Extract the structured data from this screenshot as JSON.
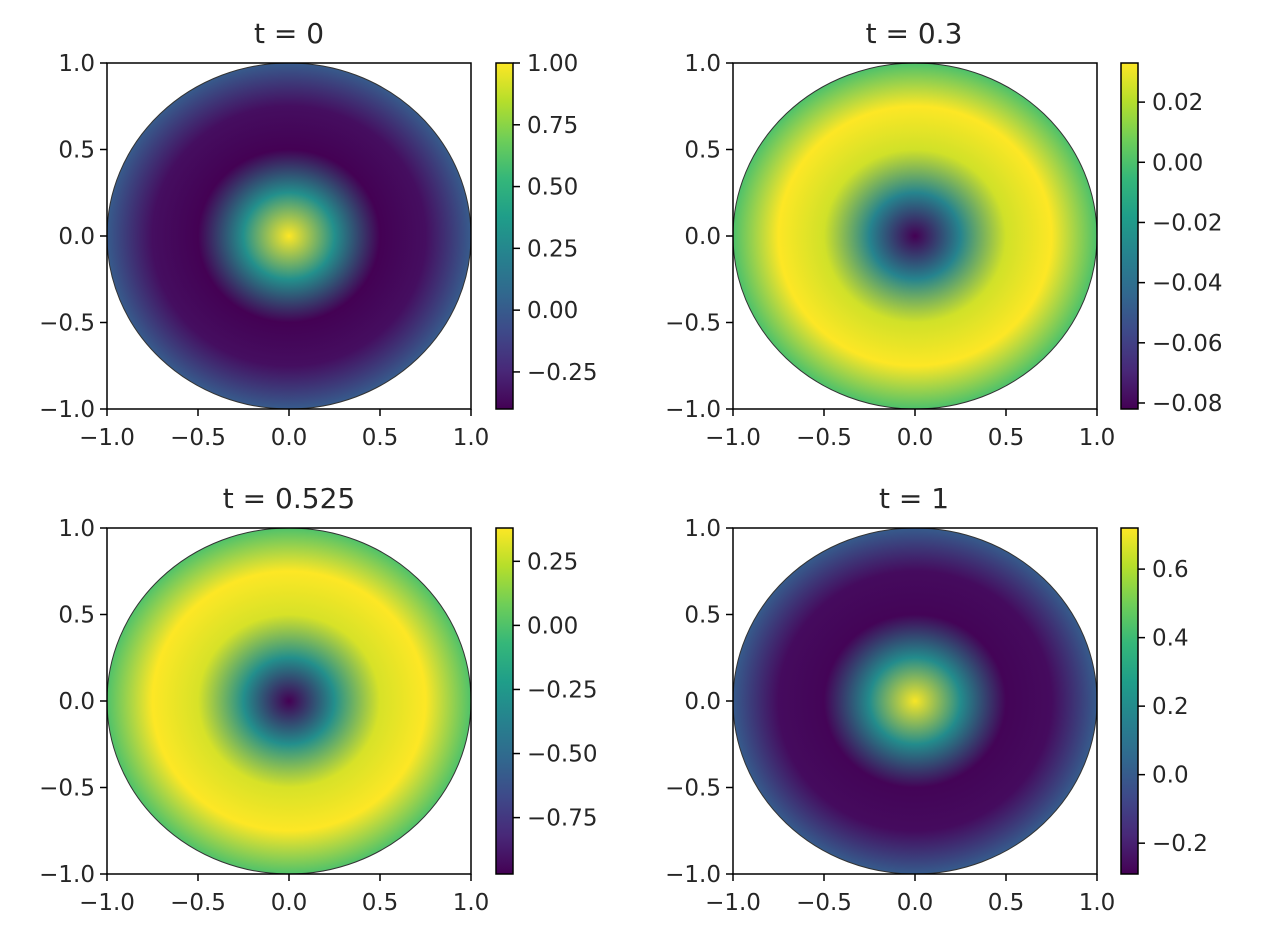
{
  "colormap": "viridis",
  "colors": {
    "viridis": [
      "#440154",
      "#482878",
      "#3e4989",
      "#31688e",
      "#26828e",
      "#1f9e89",
      "#35b779",
      "#6ece58",
      "#b5de2b",
      "#fde725"
    ],
    "axis": "#000000",
    "text": "#262626",
    "background": "#ffffff"
  },
  "chart_data": [
    {
      "type": "heatmap",
      "title": "t = 0",
      "xlabel": "",
      "ylabel": "",
      "xlim": [
        -1.0,
        1.0
      ],
      "ylim": [
        -1.0,
        1.0
      ],
      "xticks": [
        "−1.0",
        "−0.5",
        "0.0",
        "0.5",
        "1.0"
      ],
      "yticks": [
        "−1.0",
        "−0.5",
        "0.0",
        "0.5",
        "1.0"
      ],
      "domain": "unit disk",
      "radial_profile": {
        "r": [
          0.0,
          0.25,
          0.5,
          0.75,
          1.0
        ],
        "value": [
          1.0,
          0.3,
          -0.4,
          -0.35,
          0.0
        ]
      },
      "colorbar": {
        "min": -0.4,
        "max": 1.0,
        "ticks": [
          "−0.25",
          "0.00",
          "0.25",
          "0.50",
          "0.75",
          "1.00"
        ]
      }
    },
    {
      "type": "heatmap",
      "title": "t = 0.3",
      "xlabel": "",
      "ylabel": "",
      "xlim": [
        -1.0,
        1.0
      ],
      "ylim": [
        -1.0,
        1.0
      ],
      "xticks": [
        "−1.0",
        "−0.5",
        "0.0",
        "0.5",
        "1.0"
      ],
      "yticks": [
        "−1.0",
        "−0.5",
        "0.0",
        "0.5",
        "1.0"
      ],
      "domain": "unit disk",
      "radial_profile": {
        "r": [
          0.0,
          0.25,
          0.5,
          0.75,
          1.0
        ],
        "value": [
          -0.082,
          -0.03,
          0.025,
          0.033,
          0.0
        ]
      },
      "colorbar": {
        "min": -0.082,
        "max": 0.033,
        "ticks": [
          "−0.08",
          "−0.06",
          "−0.04",
          "−0.02",
          "0.00",
          "0.02"
        ]
      }
    },
    {
      "type": "heatmap",
      "title": "t = 0.525",
      "xlabel": "",
      "ylabel": "",
      "xlim": [
        -1.0,
        1.0
      ],
      "ylim": [
        -1.0,
        1.0
      ],
      "xticks": [
        "−1.0",
        "−0.5",
        "0.0",
        "0.5",
        "1.0"
      ],
      "yticks": [
        "−1.0",
        "−0.5",
        "0.0",
        "0.5",
        "1.0"
      ],
      "domain": "unit disk",
      "radial_profile": {
        "r": [
          0.0,
          0.25,
          0.5,
          0.75,
          1.0
        ],
        "value": [
          -0.97,
          -0.3,
          0.3,
          0.38,
          0.0
        ]
      },
      "colorbar": {
        "min": -0.97,
        "max": 0.38,
        "ticks": [
          "−0.75",
          "−0.50",
          "−0.25",
          "0.00",
          "0.25"
        ]
      }
    },
    {
      "type": "heatmap",
      "title": "t = 1",
      "xlabel": "",
      "ylabel": "",
      "xlim": [
        -1.0,
        1.0
      ],
      "ylim": [
        -1.0,
        1.0
      ],
      "xticks": [
        "−1.0",
        "−0.5",
        "0.0",
        "0.5",
        "1.0"
      ],
      "yticks": [
        "−1.0",
        "−0.5",
        "0.0",
        "0.5",
        "1.0"
      ],
      "domain": "unit disk",
      "radial_profile": {
        "r": [
          0.0,
          0.25,
          0.5,
          0.75,
          1.0
        ],
        "value": [
          0.71,
          0.2,
          -0.28,
          -0.26,
          0.0
        ]
      },
      "colorbar": {
        "min": -0.29,
        "max": 0.72,
        "ticks": [
          "−0.2",
          "0.0",
          "0.2",
          "0.4",
          "0.6"
        ]
      }
    }
  ]
}
